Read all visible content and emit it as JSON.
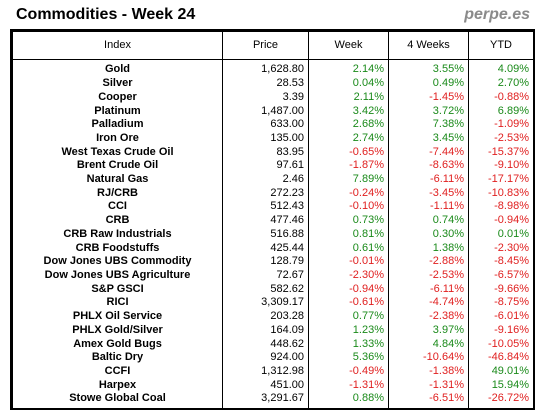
{
  "header": {
    "title": "Commodities - Week 24",
    "brand": "perpe.es"
  },
  "table": {
    "columns": [
      "Index",
      "Price",
      "Week",
      "4 Weeks",
      "YTD"
    ],
    "rows": [
      {
        "name": "Gold",
        "price": "1,628.80",
        "week": "2.14%",
        "four_weeks": "3.55%",
        "ytd": "4.09%"
      },
      {
        "name": "Silver",
        "price": "28.53",
        "week": "0.04%",
        "four_weeks": "0.49%",
        "ytd": "2.70%"
      },
      {
        "name": "Cooper",
        "price": "3.39",
        "week": "2.11%",
        "four_weeks": "-1.45%",
        "ytd": "-0.88%"
      },
      {
        "name": "Platinum",
        "price": "1,487.00",
        "week": "3.42%",
        "four_weeks": "3.72%",
        "ytd": "6.89%"
      },
      {
        "name": "Palladium",
        "price": "633.00",
        "week": "2.68%",
        "four_weeks": "7.38%",
        "ytd": "-1.09%"
      },
      {
        "name": "Iron Ore",
        "price": "135.00",
        "week": "2.74%",
        "four_weeks": "3.45%",
        "ytd": "-2.53%"
      },
      {
        "name": "West Texas Crude Oil",
        "price": "83.95",
        "week": "-0.65%",
        "four_weeks": "-7.44%",
        "ytd": "-15.37%"
      },
      {
        "name": "Brent Crude Oil",
        "price": "97.61",
        "week": "-1.87%",
        "four_weeks": "-8.63%",
        "ytd": "-9.10%"
      },
      {
        "name": "Natural Gas",
        "price": "2.46",
        "week": "7.89%",
        "four_weeks": "-6.11%",
        "ytd": "-17.17%"
      },
      {
        "name": "RJ/CRB",
        "price": "272.23",
        "week": "-0.24%",
        "four_weeks": "-3.45%",
        "ytd": "-10.83%"
      },
      {
        "name": "CCI",
        "price": "512.43",
        "week": "-0.10%",
        "four_weeks": "-1.11%",
        "ytd": "-8.98%"
      },
      {
        "name": "CRB",
        "price": "477.46",
        "week": "0.73%",
        "four_weeks": "0.74%",
        "ytd": "-0.94%"
      },
      {
        "name": "CRB Raw Industrials",
        "price": "516.88",
        "week": "0.81%",
        "four_weeks": "0.30%",
        "ytd": "0.01%"
      },
      {
        "name": "CRB Foodstuffs",
        "price": "425.44",
        "week": "0.61%",
        "four_weeks": "1.38%",
        "ytd": "-2.30%"
      },
      {
        "name": "Dow Jones UBS Commodity",
        "price": "128.79",
        "week": "-0.01%",
        "four_weeks": "-2.88%",
        "ytd": "-8.45%"
      },
      {
        "name": "Dow Jones UBS Agriculture",
        "price": "72.67",
        "week": "-2.30%",
        "four_weeks": "-2.53%",
        "ytd": "-6.57%"
      },
      {
        "name": "S&P GSCI",
        "price": "582.62",
        "week": "-0.94%",
        "four_weeks": "-6.11%",
        "ytd": "-9.66%"
      },
      {
        "name": "RICI",
        "price": "3,309.17",
        "week": "-0.61%",
        "four_weeks": "-4.74%",
        "ytd": "-8.75%"
      },
      {
        "name": "PHLX Oil Service",
        "price": "203.28",
        "week": "0.77%",
        "four_weeks": "-2.38%",
        "ytd": "-6.01%"
      },
      {
        "name": "PHLX Gold/Silver",
        "price": "164.09",
        "week": "1.23%",
        "four_weeks": "3.97%",
        "ytd": "-9.16%"
      },
      {
        "name": "Amex Gold Bugs",
        "price": "448.62",
        "week": "1.33%",
        "four_weeks": "4.84%",
        "ytd": "-10.05%"
      },
      {
        "name": "Baltic Dry",
        "price": "924.00",
        "week": "5.36%",
        "four_weeks": "-10.64%",
        "ytd": "-46.84%"
      },
      {
        "name": "CCFI",
        "price": "1,312.98",
        "week": "-0.49%",
        "four_weeks": "-1.38%",
        "ytd": "49.01%"
      },
      {
        "name": "Harpex",
        "price": "451.00",
        "week": "-1.31%",
        "four_weeks": "-1.31%",
        "ytd": "15.94%"
      },
      {
        "name": "Stowe Global Coal",
        "price": "3,291.67",
        "week": "0.88%",
        "four_weeks": "-6.51%",
        "ytd": "-26.72%"
      }
    ]
  },
  "colors": {
    "positive": "#1a8a1a",
    "negative": "#e02020",
    "brand": "#8a8a8a"
  }
}
